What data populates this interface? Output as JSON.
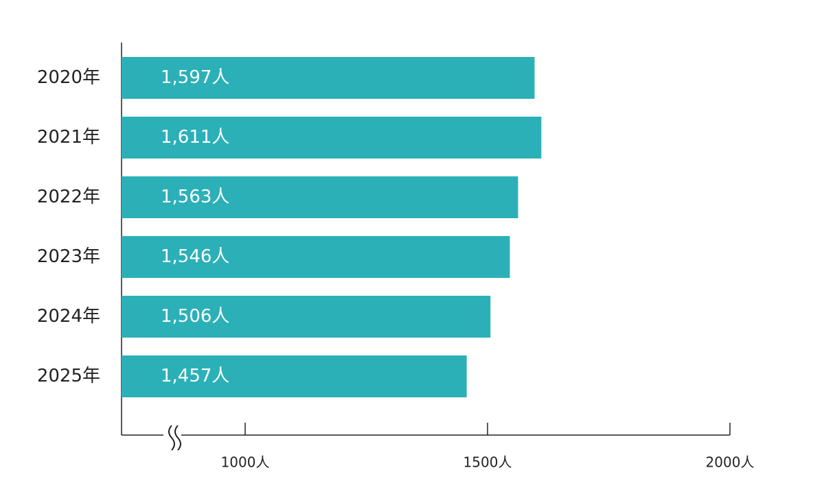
{
  "chart_data": {
    "type": "bar",
    "orientation": "horizontal",
    "categories": [
      "2020年",
      "2021年",
      "2022年",
      "2023年",
      "2024年",
      "2025年"
    ],
    "values": [
      1597,
      1611,
      1563,
      1546,
      1506,
      1457
    ],
    "value_labels": [
      "1,597人",
      "1,611人",
      "1,563人",
      "1,546人",
      "1,506人",
      "1,457人"
    ],
    "color": "#2cb0b8",
    "xlim": [
      745,
      2000
    ],
    "xticks": [
      {
        "value": 1000,
        "label": "1000人"
      },
      {
        "value": 1500,
        "label": "1500人"
      },
      {
        "value": 2000,
        "label": "2000人"
      }
    ],
    "grid": false
  }
}
